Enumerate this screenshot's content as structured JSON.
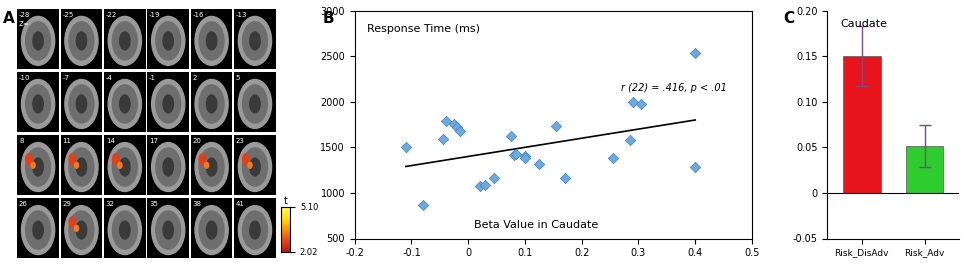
{
  "chart_data": [
    {
      "type": "image",
      "panel_label": "A",
      "slice_labels": [
        -28,
        -25,
        -22,
        -19,
        -16,
        -13,
        -10,
        -7,
        -4,
        -1,
        2,
        5,
        8,
        11,
        14,
        17,
        20,
        23,
        26,
        29,
        32,
        35,
        38,
        41
      ],
      "slice_prefix": "Z=",
      "colorbar": {
        "label": "t",
        "range": [
          2.02,
          5.1
        ],
        "ticks": [
          {
            "value": 5.1,
            "label": "5.10"
          },
          2.02
        ]
      }
    },
    {
      "type": "scatter",
      "panel_label": "B",
      "y_label": "Response Time (ms)",
      "x_label": "Beta Value in Caudate",
      "annotation": "r (22) = .416, p < .01",
      "x": [
        -0.11,
        -0.08,
        -0.045,
        -0.04,
        -0.025,
        -0.02,
        -0.015,
        0.02,
        0.03,
        0.045,
        0.075,
        0.08,
        0.085,
        0.1,
        0.1,
        0.125,
        0.155,
        0.17,
        0.255,
        0.285,
        0.29,
        0.305,
        0.4,
        0.4
      ],
      "values": [
        1500,
        870,
        1590,
        1790,
        1760,
        1720,
        1680,
        1080,
        1090,
        1160,
        1620,
        1420,
        1430,
        1410,
        1380,
        1320,
        1730,
        1160,
        1380,
        1580,
        2000,
        1970,
        2530,
        1280
      ],
      "trend_line": {
        "x": [
          -0.11,
          0.4
        ],
        "y": [
          1290,
          1800
        ]
      },
      "color": "#6fa8dc",
      "marker": "D",
      "xlim": [
        -0.2,
        0.5
      ],
      "xticks": [
        -0.2,
        -0.1,
        0,
        0.1,
        0.2,
        0.3,
        0.4,
        0.5
      ],
      "ylim": [
        500,
        3000
      ],
      "yticks": [
        500,
        1000,
        1500,
        2000,
        2500,
        3000
      ]
    },
    {
      "type": "bar",
      "panel_label": "C",
      "title": "Caudate",
      "categories": [
        "Risk_DisAdv",
        "Risk_Adv"
      ],
      "values": [
        0.15,
        0.051
      ],
      "errors": [
        0.033,
        0.023
      ],
      "colors": [
        "#e8141b",
        "#2ecc2e"
      ],
      "ylim": [
        -0.05,
        0.2
      ],
      "yticks": [
        -0.05,
        0,
        0.05,
        {
          "value": 0.1,
          "label": "0.10"
        },
        0.15,
        {
          "value": 0.2,
          "label": "0.20"
        }
      ]
    }
  ]
}
